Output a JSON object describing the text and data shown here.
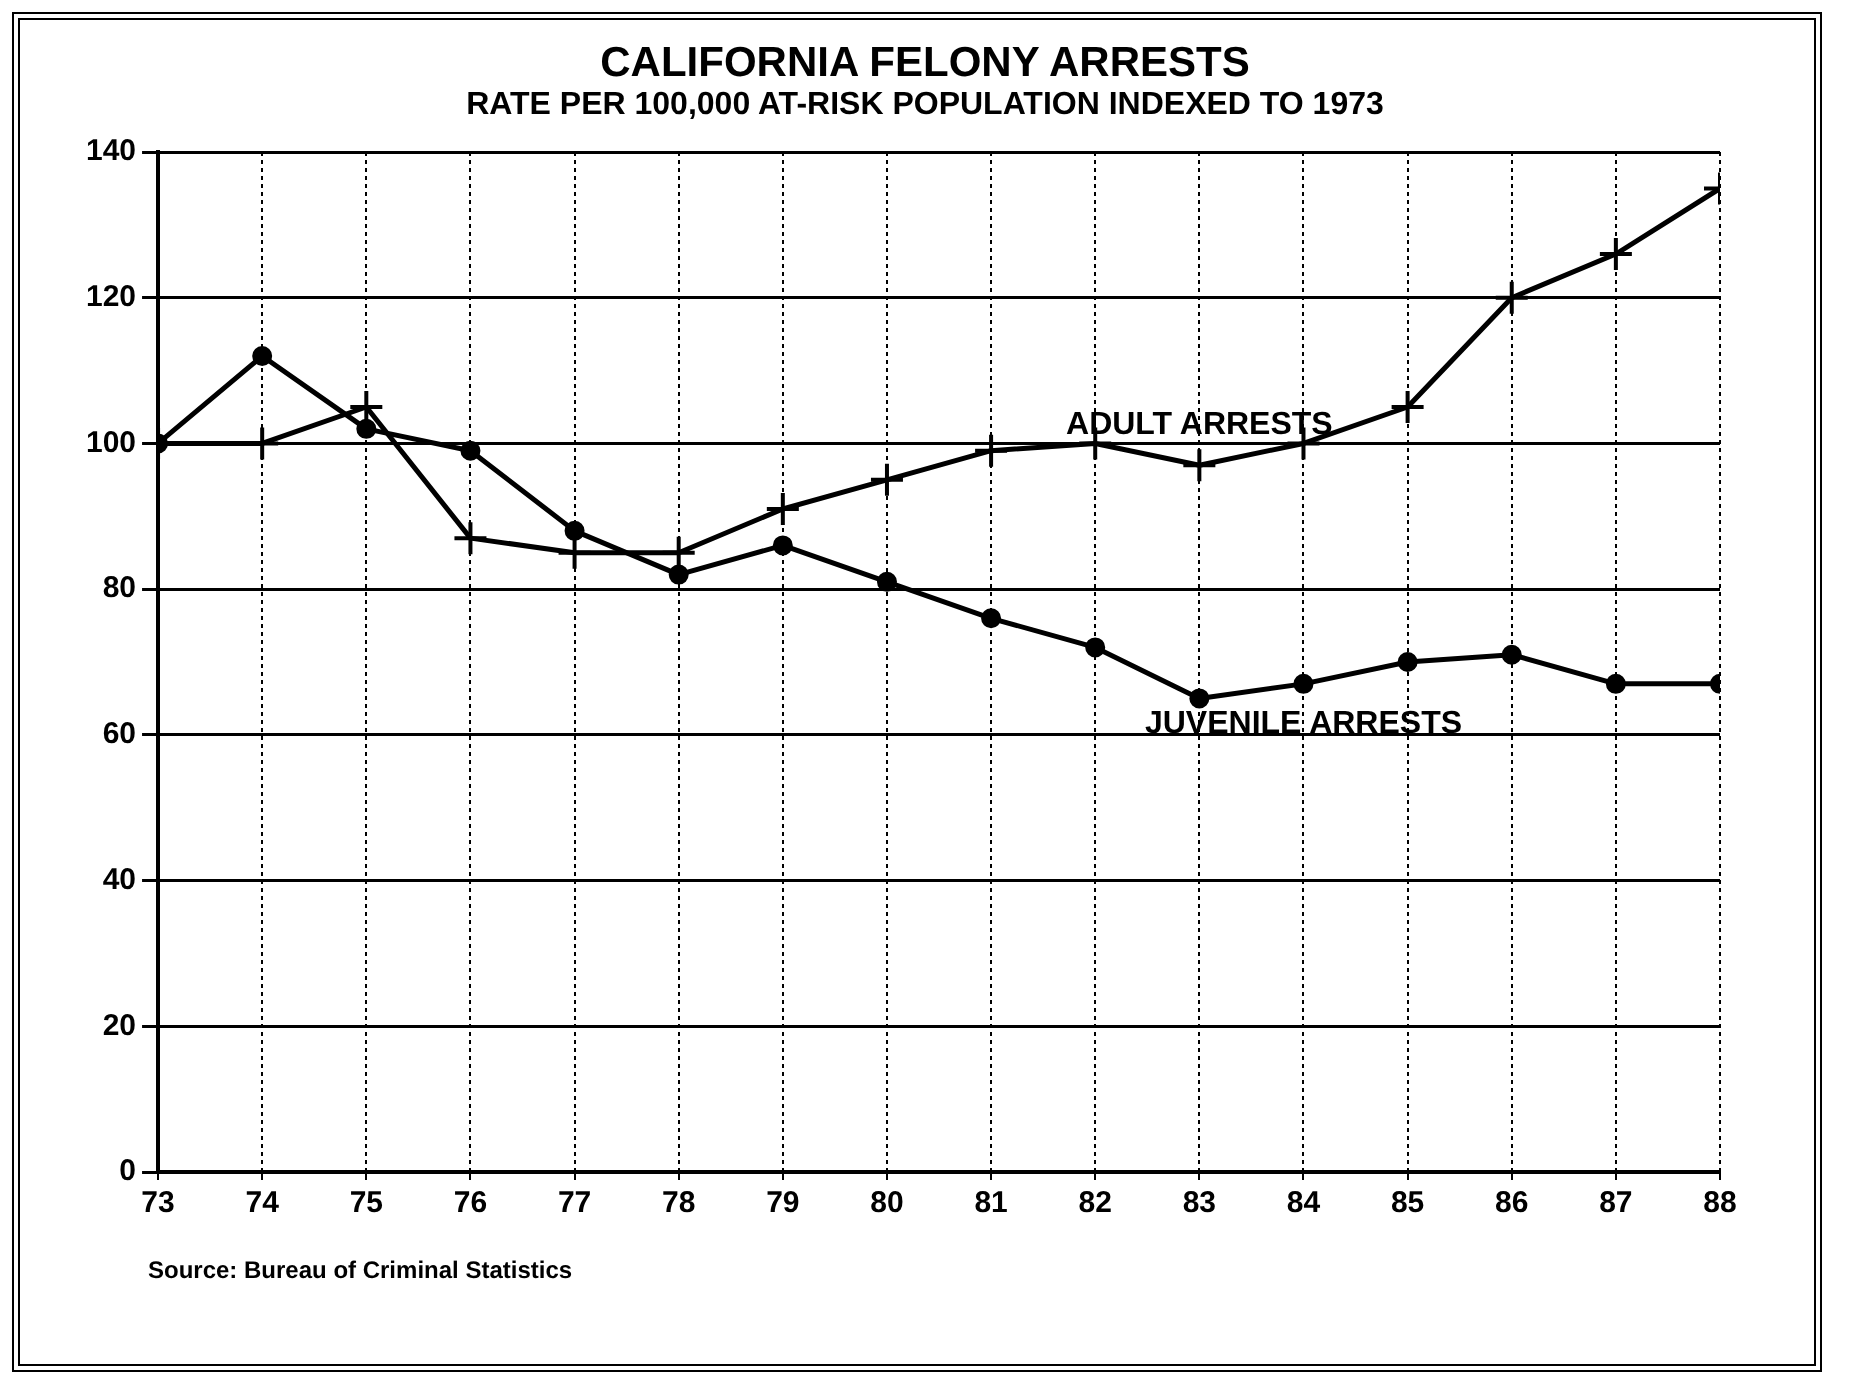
{
  "chart_data": {
    "type": "line",
    "title": "CALIFORNIA FELONY ARRESTS",
    "subtitle": "RATE PER 100,000 AT-RISK POPULATION INDEXED TO 1973",
    "x": [
      73,
      74,
      75,
      76,
      77,
      78,
      79,
      80,
      81,
      82,
      83,
      84,
      85,
      86,
      87,
      88
    ],
    "xlim": [
      73,
      88
    ],
    "xticks": [
      73,
      74,
      75,
      76,
      77,
      78,
      79,
      80,
      81,
      82,
      83,
      84,
      85,
      86,
      87,
      88
    ],
    "ylim": [
      0,
      140
    ],
    "yticks": [
      0,
      20,
      40,
      60,
      80,
      100,
      120,
      140
    ],
    "grid": true,
    "legend": false,
    "series": [
      {
        "name": "ADULT ARRESTS",
        "color": "#000000",
        "marker": "cross",
        "values": [
          100,
          100,
          105,
          87,
          85,
          85,
          91,
          95,
          99,
          100,
          97,
          100,
          105,
          120,
          126,
          135
        ]
      },
      {
        "name": "JUVENILE ARRESTS",
        "color": "#000000",
        "marker": "circle",
        "values": [
          100,
          112,
          102,
          99,
          88,
          82,
          86,
          81,
          76,
          72,
          65,
          67,
          70,
          71,
          67,
          67
        ]
      }
    ],
    "annotations": [
      "Source: Bureau of Criminal Statistics"
    ]
  }
}
